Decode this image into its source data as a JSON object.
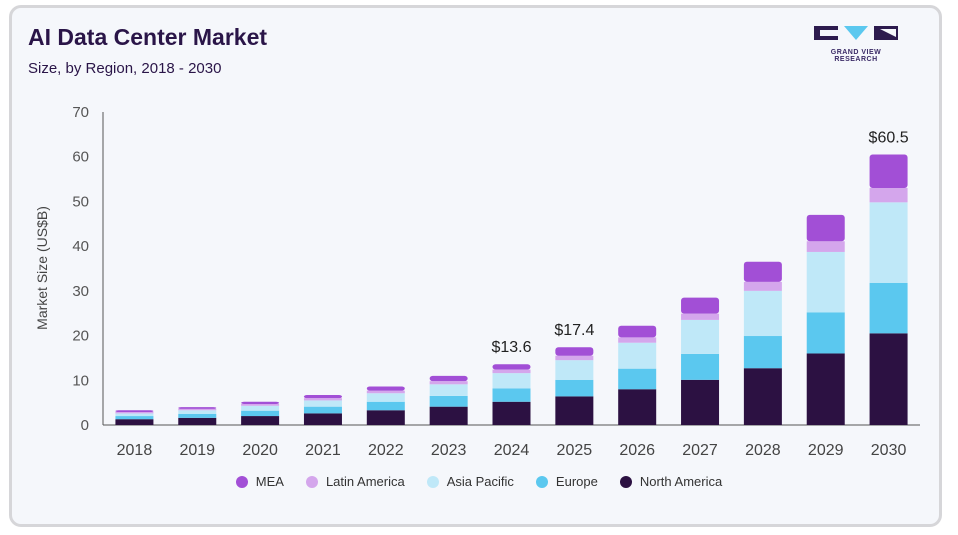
{
  "header": {
    "title": "AI Data Center Market",
    "subtitle": "Size, by Region, 2018 - 2030"
  },
  "logo": {
    "text": "GRAND VIEW RESEARCH",
    "colors": {
      "primary": "#2d1b4e",
      "accent": "#5bc8ef"
    }
  },
  "colors": {
    "MEA": "#a24fd6",
    "Latin America": "#d4a6ec",
    "Asia Pacific": "#bfe8f8",
    "Europe": "#5bc8ef",
    "North America": "#2c1142"
  },
  "chart_data": {
    "type": "bar",
    "stacked": true,
    "title": "AI Data Center Market",
    "subtitle": "Size, by Region, 2018 - 2030",
    "xlabel": "",
    "ylabel": "Market Size (US$B)",
    "ylim": [
      0,
      70
    ],
    "yticks": [
      0,
      10,
      20,
      30,
      40,
      50,
      60,
      70
    ],
    "categories": [
      "2018",
      "2019",
      "2020",
      "2021",
      "2022",
      "2023",
      "2024",
      "2025",
      "2026",
      "2027",
      "2028",
      "2029",
      "2030"
    ],
    "series": [
      {
        "name": "North America",
        "values": [
          1.3,
          1.6,
          2.0,
          2.6,
          3.3,
          4.1,
          5.2,
          6.4,
          8.0,
          10.1,
          12.7,
          16.0,
          20.5
        ]
      },
      {
        "name": "Europe",
        "values": [
          0.7,
          0.9,
          1.2,
          1.5,
          1.9,
          2.4,
          3.0,
          3.7,
          4.6,
          5.8,
          7.2,
          9.2,
          11.3
        ]
      },
      {
        "name": "Asia Pacific",
        "values": [
          0.6,
          0.8,
          1.1,
          1.4,
          1.9,
          2.6,
          3.4,
          4.4,
          5.8,
          7.6,
          10.1,
          13.5,
          18.0
        ]
      },
      {
        "name": "Latin America",
        "values": [
          0.3,
          0.3,
          0.4,
          0.5,
          0.6,
          0.7,
          0.8,
          1.0,
          1.2,
          1.4,
          2.0,
          2.4,
          3.2
        ]
      },
      {
        "name": "MEA",
        "values": [
          0.4,
          0.4,
          0.5,
          0.7,
          0.9,
          1.2,
          1.2,
          1.9,
          2.6,
          3.6,
          4.5,
          5.9,
          7.5
        ]
      }
    ],
    "data_labels": [
      {
        "category": "2024",
        "text": "$13.6"
      },
      {
        "category": "2025",
        "text": "$17.4"
      },
      {
        "category": "2030",
        "text": "$60.5"
      }
    ],
    "grid": false,
    "legend": {
      "position": "bottom",
      "entries": [
        "MEA",
        "Latin America",
        "Asia Pacific",
        "Europe",
        "North America"
      ]
    }
  }
}
